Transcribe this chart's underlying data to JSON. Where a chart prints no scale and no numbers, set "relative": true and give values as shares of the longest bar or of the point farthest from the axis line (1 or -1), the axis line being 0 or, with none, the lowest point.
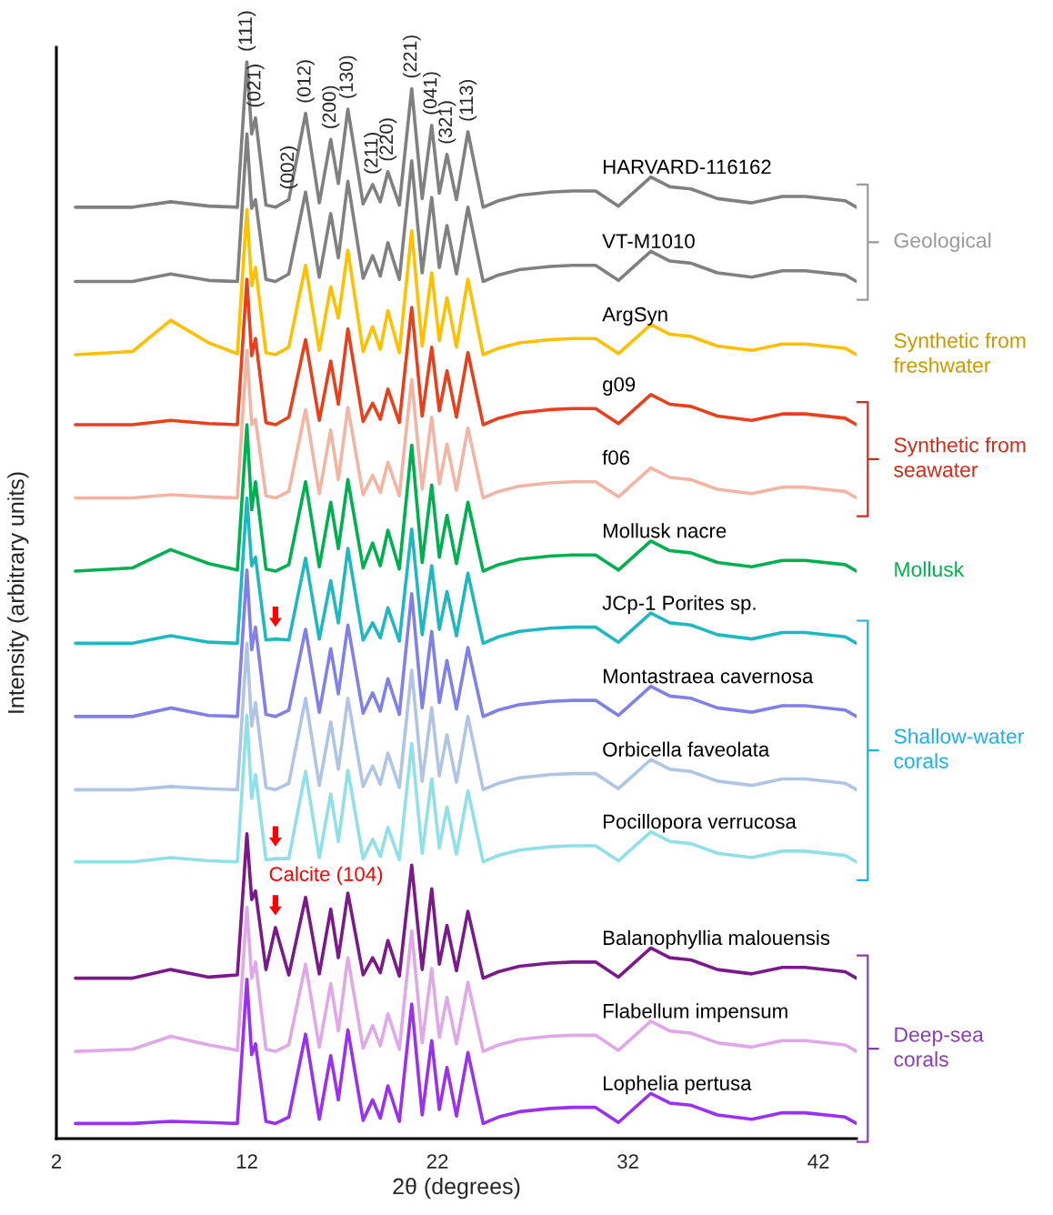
{
  "chart_data": {
    "type": "line",
    "relative": true,
    "xlabel": "2θ (degrees)",
    "ylabel": "Intensity (arbitrary units)",
    "xlim": [
      2,
      44
    ],
    "xticks": [
      2,
      12,
      22,
      32,
      42
    ],
    "x": [
      3,
      6,
      8,
      10,
      11.5,
      12,
      12.25,
      12.45,
      13,
      13.5,
      14.2,
      15.08,
      15.8,
      16.4,
      16.8,
      17.3,
      18.1,
      18.6,
      19,
      19.4,
      20,
      20.65,
      21.2,
      21.7,
      22.1,
      22.5,
      23,
      23.6,
      24.4,
      25.2,
      26.3,
      27.9,
      29.1,
      30.3,
      31.5,
      33.2,
      34.2,
      35.3,
      36.7,
      38.5,
      40.1,
      41.3,
      43.4,
      44
    ],
    "series": [
      {
        "name": "HARVARD-116162",
        "color": "#808080",
        "values": [
          0.865,
          0.865,
          0.87,
          0.866,
          0.865,
          1.0,
          0.933,
          0.948,
          0.867,
          0.865,
          0.872,
          0.952,
          0.869,
          0.928,
          0.887,
          0.956,
          0.868,
          0.886,
          0.87,
          0.898,
          0.867,
          0.975,
          0.873,
          0.941,
          0.878,
          0.914,
          0.872,
          0.935,
          0.865,
          0.871,
          0.876,
          0.879,
          0.88,
          0.88,
          0.866,
          0.893,
          0.884,
          0.882,
          0.873,
          0.869,
          0.875,
          0.875,
          0.871,
          0.865
        ]
      },
      {
        "name": "VT-M1010",
        "color": "#808080",
        "values": [
          0.796,
          0.796,
          0.803,
          0.797,
          0.796,
          0.933,
          0.864,
          0.872,
          0.798,
          0.796,
          0.803,
          0.879,
          0.8,
          0.859,
          0.818,
          0.889,
          0.799,
          0.82,
          0.801,
          0.832,
          0.798,
          0.908,
          0.804,
          0.874,
          0.809,
          0.848,
          0.803,
          0.865,
          0.796,
          0.802,
          0.807,
          0.81,
          0.811,
          0.811,
          0.797,
          0.824,
          0.815,
          0.813,
          0.804,
          0.8,
          0.806,
          0.806,
          0.802,
          0.796
        ]
      },
      {
        "name": "ArgSyn",
        "color": "#ffc000",
        "values": [
          0.728,
          0.731,
          0.76,
          0.739,
          0.729,
          0.863,
          0.792,
          0.809,
          0.73,
          0.728,
          0.735,
          0.811,
          0.732,
          0.791,
          0.762,
          0.825,
          0.731,
          0.754,
          0.733,
          0.769,
          0.73,
          0.843,
          0.736,
          0.804,
          0.741,
          0.781,
          0.735,
          0.798,
          0.728,
          0.734,
          0.739,
          0.742,
          0.743,
          0.743,
          0.729,
          0.756,
          0.747,
          0.745,
          0.736,
          0.732,
          0.738,
          0.738,
          0.734,
          0.728
        ]
      },
      {
        "name": "g09",
        "color": "#e8401c",
        "values": [
          0.663,
          0.663,
          0.667,
          0.664,
          0.663,
          0.798,
          0.727,
          0.743,
          0.665,
          0.663,
          0.67,
          0.742,
          0.667,
          0.722,
          0.682,
          0.752,
          0.666,
          0.683,
          0.668,
          0.696,
          0.665,
          0.772,
          0.671,
          0.735,
          0.676,
          0.713,
          0.67,
          0.73,
          0.663,
          0.669,
          0.674,
          0.677,
          0.678,
          0.678,
          0.664,
          0.691,
          0.682,
          0.68,
          0.671,
          0.667,
          0.673,
          0.673,
          0.669,
          0.663
        ]
      },
      {
        "name": "f06",
        "color": "#f4b4a4",
        "values": [
          0.595,
          0.595,
          0.598,
          0.596,
          0.595,
          0.732,
          0.663,
          0.668,
          0.597,
          0.595,
          0.601,
          0.677,
          0.599,
          0.658,
          0.612,
          0.679,
          0.598,
          0.616,
          0.6,
          0.628,
          0.597,
          0.705,
          0.603,
          0.67,
          0.608,
          0.645,
          0.602,
          0.66,
          0.595,
          0.601,
          0.606,
          0.609,
          0.61,
          0.61,
          0.596,
          0.623,
          0.614,
          0.612,
          0.603,
          0.599,
          0.605,
          0.605,
          0.601,
          0.595
        ]
      },
      {
        "name": "Mollusk nacre",
        "color": "#00b050",
        "values": [
          0.527,
          0.53,
          0.547,
          0.534,
          0.528,
          0.663,
          0.584,
          0.61,
          0.529,
          0.527,
          0.533,
          0.61,
          0.531,
          0.591,
          0.548,
          0.612,
          0.53,
          0.553,
          0.532,
          0.565,
          0.529,
          0.644,
          0.535,
          0.607,
          0.54,
          0.579,
          0.534,
          0.591,
          0.527,
          0.533,
          0.538,
          0.541,
          0.542,
          0.542,
          0.528,
          0.555,
          0.546,
          0.544,
          0.535,
          0.531,
          0.537,
          0.537,
          0.533,
          0.527
        ]
      },
      {
        "name": "JCp-1 Porites sp.",
        "color": "#20b8c0",
        "values": [
          0.46,
          0.46,
          0.467,
          0.461,
          0.46,
          0.595,
          0.532,
          0.54,
          0.463,
          0.464,
          0.463,
          0.539,
          0.464,
          0.518,
          0.479,
          0.548,
          0.463,
          0.479,
          0.465,
          0.493,
          0.462,
          0.566,
          0.468,
          0.532,
          0.473,
          0.508,
          0.467,
          0.525,
          0.46,
          0.466,
          0.471,
          0.474,
          0.475,
          0.475,
          0.461,
          0.488,
          0.479,
          0.477,
          0.468,
          0.464,
          0.47,
          0.47,
          0.466,
          0.46
        ]
      },
      {
        "name": "Montastraea cavernosa",
        "color": "#8080e8",
        "values": [
          0.392,
          0.392,
          0.4,
          0.393,
          0.392,
          0.528,
          0.454,
          0.475,
          0.394,
          0.392,
          0.398,
          0.473,
          0.396,
          0.455,
          0.413,
          0.477,
          0.395,
          0.414,
          0.397,
          0.427,
          0.394,
          0.506,
          0.4,
          0.471,
          0.405,
          0.444,
          0.399,
          0.456,
          0.392,
          0.398,
          0.403,
          0.406,
          0.407,
          0.407,
          0.393,
          0.42,
          0.411,
          0.409,
          0.4,
          0.396,
          0.402,
          0.402,
          0.398,
          0.392
        ]
      },
      {
        "name": "Orbicella faveolata",
        "color": "#b0c4e4",
        "values": [
          0.324,
          0.324,
          0.327,
          0.325,
          0.324,
          0.46,
          0.383,
          0.405,
          0.326,
          0.324,
          0.33,
          0.409,
          0.328,
          0.387,
          0.343,
          0.409,
          0.327,
          0.346,
          0.329,
          0.358,
          0.326,
          0.435,
          0.332,
          0.4,
          0.337,
          0.375,
          0.331,
          0.392,
          0.324,
          0.33,
          0.335,
          0.338,
          0.339,
          0.339,
          0.325,
          0.352,
          0.343,
          0.341,
          0.332,
          0.328,
          0.334,
          0.334,
          0.33,
          0.324
        ]
      },
      {
        "name": "Pocillopora verrucosa",
        "color": "#90e0e8",
        "values": [
          0.257,
          0.257,
          0.261,
          0.258,
          0.257,
          0.393,
          0.316,
          0.338,
          0.259,
          0.26,
          0.26,
          0.341,
          0.261,
          0.32,
          0.276,
          0.342,
          0.26,
          0.278,
          0.262,
          0.289,
          0.259,
          0.367,
          0.265,
          0.334,
          0.27,
          0.308,
          0.264,
          0.323,
          0.257,
          0.263,
          0.268,
          0.271,
          0.272,
          0.272,
          0.258,
          0.285,
          0.276,
          0.274,
          0.265,
          0.261,
          0.267,
          0.267,
          0.263,
          0.257
        ]
      },
      {
        "name": "Balanophyllia malouensis",
        "color": "#7a1a8a",
        "values": [
          0.149,
          0.149,
          0.157,
          0.15,
          0.152,
          0.283,
          0.222,
          0.23,
          0.157,
          0.196,
          0.152,
          0.224,
          0.153,
          0.213,
          0.168,
          0.228,
          0.152,
          0.168,
          0.154,
          0.184,
          0.151,
          0.254,
          0.157,
          0.232,
          0.162,
          0.198,
          0.156,
          0.211,
          0.149,
          0.155,
          0.16,
          0.163,
          0.164,
          0.164,
          0.15,
          0.177,
          0.168,
          0.166,
          0.157,
          0.153,
          0.159,
          0.159,
          0.155,
          0.149
        ]
      },
      {
        "name": "Flabellum impensum",
        "color": "#e0a8e8",
        "values": [
          0.081,
          0.083,
          0.095,
          0.087,
          0.082,
          0.215,
          0.149,
          0.164,
          0.083,
          0.081,
          0.087,
          0.162,
          0.085,
          0.144,
          0.1,
          0.168,
          0.084,
          0.105,
          0.086,
          0.116,
          0.083,
          0.193,
          0.089,
          0.158,
          0.094,
          0.131,
          0.088,
          0.145,
          0.081,
          0.087,
          0.092,
          0.095,
          0.096,
          0.096,
          0.082,
          0.109,
          0.1,
          0.098,
          0.089,
          0.085,
          0.091,
          0.091,
          0.087,
          0.081
        ]
      },
      {
        "name": "Lophelia pertusa",
        "color": "#9a30f0",
        "values": [
          0.014,
          0.014,
          0.016,
          0.015,
          0.014,
          0.148,
          0.078,
          0.088,
          0.016,
          0.014,
          0.02,
          0.097,
          0.018,
          0.077,
          0.036,
          0.101,
          0.017,
          0.036,
          0.019,
          0.049,
          0.016,
          0.125,
          0.022,
          0.091,
          0.027,
          0.066,
          0.021,
          0.08,
          0.014,
          0.02,
          0.025,
          0.028,
          0.029,
          0.029,
          0.015,
          0.042,
          0.033,
          0.031,
          0.022,
          0.018,
          0.024,
          0.024,
          0.02,
          0.014
        ]
      }
    ],
    "annotations": [
      {
        "text": "(111)",
        "x": 12,
        "y": 1.0
      },
      {
        "text": "(021)",
        "x": 12.45,
        "y": 0.948
      },
      {
        "text": "(002)",
        "x": 14.2,
        "y": 0.872
      },
      {
        "text": "(012)",
        "x": 15.08,
        "y": 0.952
      },
      {
        "text": "(200)",
        "x": 16.4,
        "y": 0.928
      },
      {
        "text": "(130)",
        "x": 17.3,
        "y": 0.956
      },
      {
        "text": "(211)",
        "x": 18.6,
        "y": 0.886
      },
      {
        "text": "(220)",
        "x": 19.4,
        "y": 0.898
      },
      {
        "text": "(221)",
        "x": 20.65,
        "y": 0.975
      },
      {
        "text": "(041)",
        "x": 21.7,
        "y": 0.941
      },
      {
        "text": "(321)",
        "x": 22.5,
        "y": 0.914
      },
      {
        "text": "(113)",
        "x": 23.6,
        "y": 0.935
      },
      {
        "text": "Calcite (104)",
        "x": 13.5,
        "y": 0.196
      },
      "Geological",
      "Synthetic from\nfreshwater",
      "Synthetic from\nseawater",
      "Mollusk",
      "Shallow-water\ncorals",
      "Deep-sea\ncorals"
    ]
  }
}
